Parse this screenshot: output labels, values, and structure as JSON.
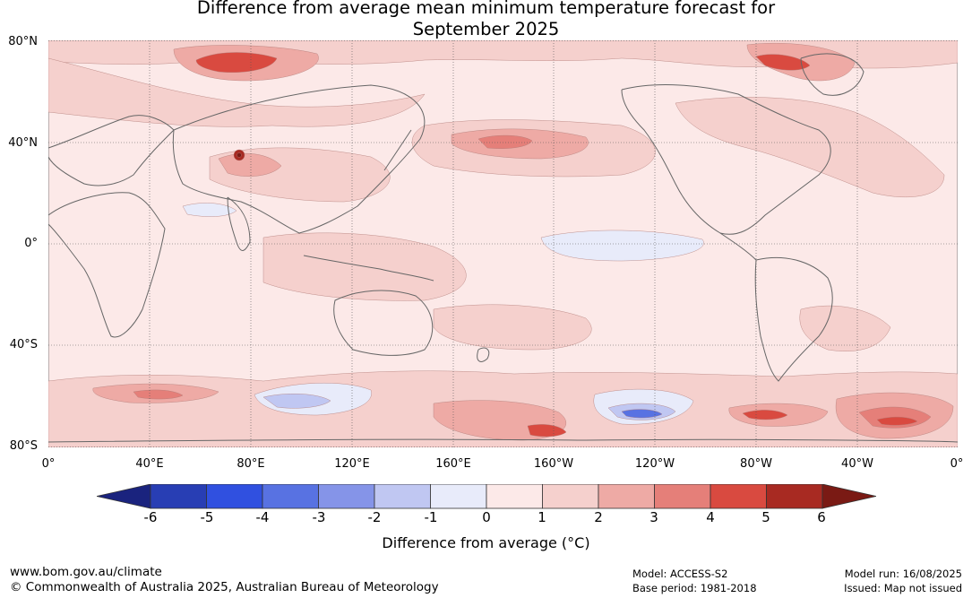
{
  "title": {
    "line1": "Difference from average mean minimum temperature forecast for",
    "line2": "September 2025"
  },
  "map": {
    "lat_labels": [
      "80°N",
      "40°N",
      "0°",
      "40°S",
      "80°S"
    ],
    "lon_labels": [
      "0°",
      "40°E",
      "80°E",
      "120°E",
      "160°E",
      "160°W",
      "120°W",
      "80°W",
      "40°W",
      "0°"
    ],
    "background_anomaly_color": "#fce9e8",
    "coastline_color": "#666666"
  },
  "colorbar": {
    "ticks": [
      "-6",
      "-5",
      "-4",
      "-3",
      "-2",
      "-1",
      "0",
      "1",
      "2",
      "3",
      "4",
      "5",
      "6"
    ],
    "colors": [
      "#1a237e",
      "#283eb4",
      "#3050e0",
      "#5872e2",
      "#8594e8",
      "#c0c7f2",
      "#e8ebfa",
      "#fce9e8",
      "#f5d0cd",
      "#eeaaa5",
      "#e57f79",
      "#d94a40",
      "#a82a22",
      "#7a1a14"
    ],
    "label": "Difference from average (°C)"
  },
  "footer": {
    "website": "www.bom.gov.au/climate",
    "copyright": "© Commonwealth of Australia 2025, Australian Bureau of Meteorology",
    "model": "Model: ACCESS-S2",
    "base_period": "Base period: 1981-2018",
    "model_run": "Model run: 16/08/2025",
    "issued": "Issued: Map not issued"
  }
}
